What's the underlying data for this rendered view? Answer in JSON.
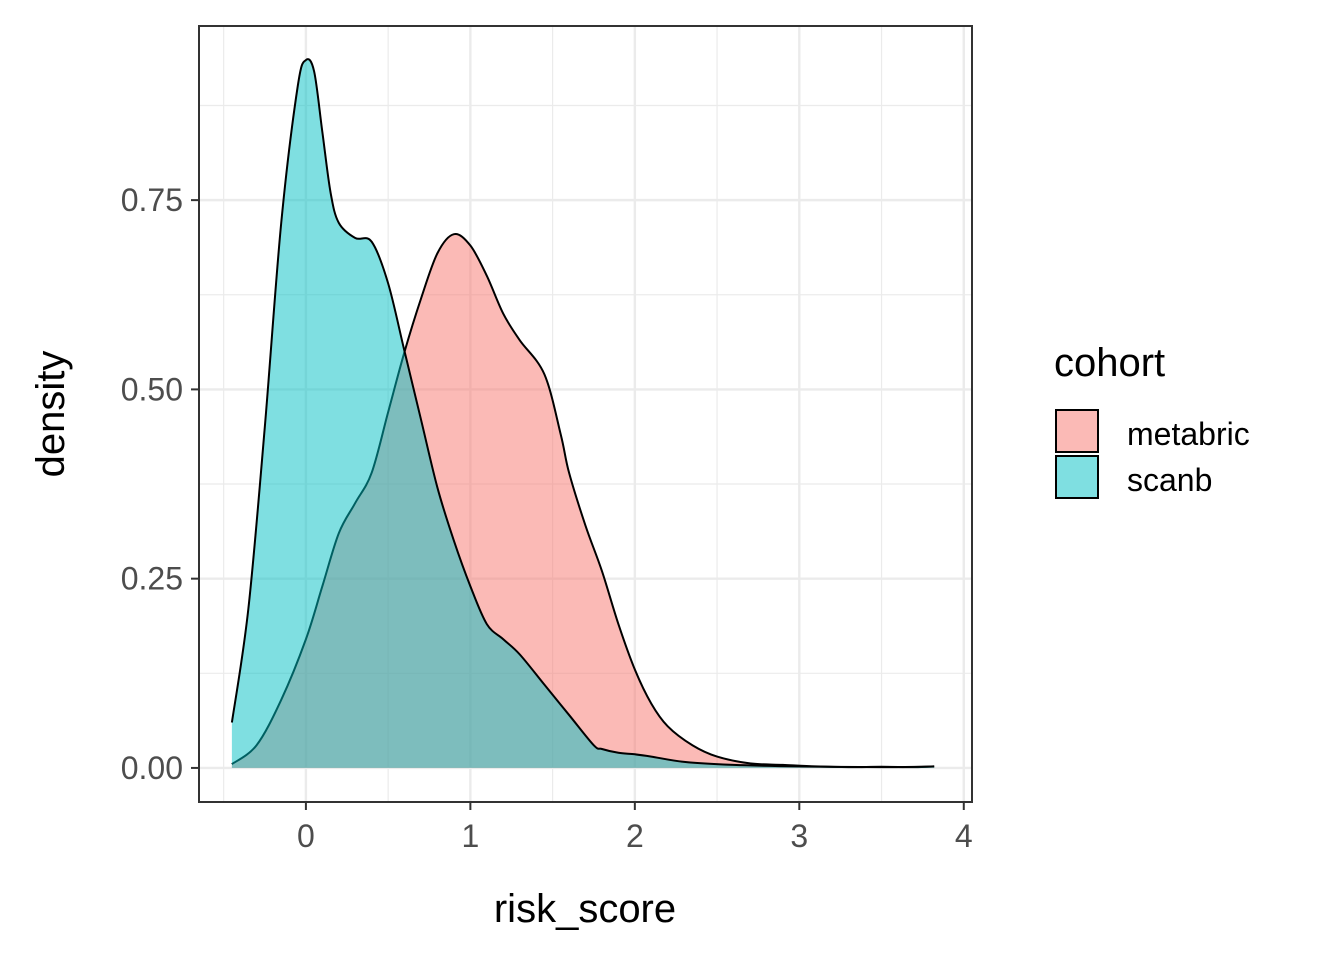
{
  "chart_data": {
    "type": "area",
    "xlabel": "risk_score",
    "ylabel": "density",
    "xlim": [
      -0.65,
      4.05
    ],
    "ylim": [
      -0.045,
      0.98
    ],
    "x_ticks": [
      0,
      1,
      2,
      3,
      4
    ],
    "x_tick_labels": [
      "0",
      "1",
      "2",
      "3",
      "4"
    ],
    "y_ticks": [
      0,
      0.25,
      0.5,
      0.75
    ],
    "y_tick_labels": [
      "0.00",
      "0.25",
      "0.50",
      "0.75"
    ],
    "grid": true,
    "legend": {
      "title": "cohort",
      "position": "right"
    },
    "series": [
      {
        "name": "metabric",
        "color": "#F8766D",
        "x": [
          -0.45,
          -0.3,
          -0.15,
          0.0,
          0.1,
          0.2,
          0.3,
          0.4,
          0.5,
          0.6,
          0.7,
          0.8,
          0.9,
          1.0,
          1.1,
          1.2,
          1.3,
          1.45,
          1.55,
          1.6,
          1.7,
          1.8,
          1.9,
          2.0,
          2.1,
          2.2,
          2.35,
          2.5,
          2.7,
          2.9,
          3.1,
          3.3,
          3.5,
          3.7,
          3.82
        ],
        "values": [
          0.005,
          0.03,
          0.09,
          0.17,
          0.24,
          0.31,
          0.35,
          0.39,
          0.47,
          0.55,
          0.62,
          0.68,
          0.705,
          0.69,
          0.65,
          0.6,
          0.565,
          0.52,
          0.44,
          0.39,
          0.32,
          0.26,
          0.19,
          0.13,
          0.085,
          0.055,
          0.03,
          0.015,
          0.006,
          0.004,
          0.002,
          0.001,
          0.0015,
          0.001,
          0.002
        ]
      },
      {
        "name": "scanb",
        "color": "#00BFC4",
        "x": [
          -0.45,
          -0.35,
          -0.25,
          -0.15,
          -0.05,
          0.0,
          0.05,
          0.1,
          0.15,
          0.2,
          0.3,
          0.4,
          0.5,
          0.6,
          0.7,
          0.8,
          0.9,
          1.0,
          1.1,
          1.2,
          1.3,
          1.45,
          1.6,
          1.75,
          1.8,
          1.9,
          2.0,
          2.1,
          2.3,
          2.6,
          3.0,
          3.5,
          3.82
        ],
        "values": [
          0.06,
          0.21,
          0.45,
          0.72,
          0.9,
          0.935,
          0.92,
          0.84,
          0.76,
          0.72,
          0.7,
          0.695,
          0.64,
          0.55,
          0.46,
          0.37,
          0.3,
          0.24,
          0.19,
          0.17,
          0.15,
          0.11,
          0.07,
          0.03,
          0.025,
          0.02,
          0.018,
          0.015,
          0.008,
          0.004,
          0.002,
          0.001,
          0.002
        ]
      }
    ]
  }
}
